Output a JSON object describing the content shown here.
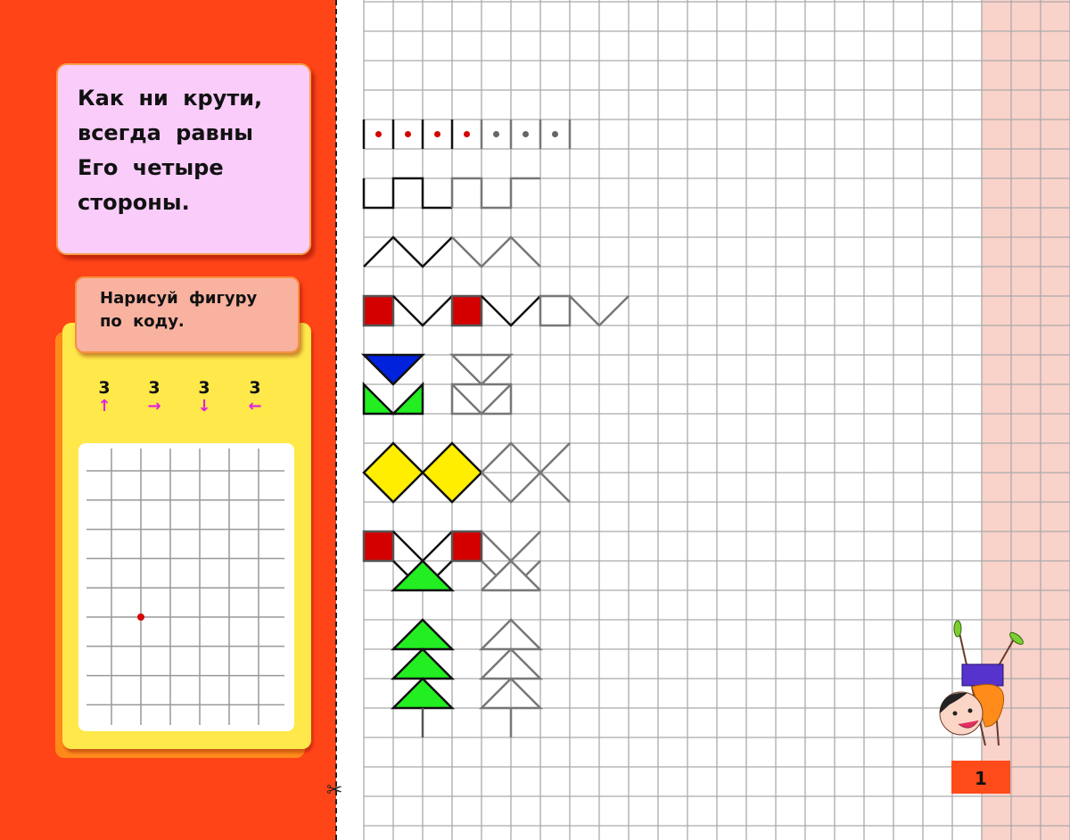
{
  "rhyme": {
    "lines": [
      "Как ни крути,",
      "всегда равны",
      "Его четыре",
      "стороны."
    ]
  },
  "task": {
    "lines": [
      "Нарисуй фигуру",
      "по коду."
    ]
  },
  "code": [
    {
      "count": "3",
      "direction": "up",
      "arrow": "↑"
    },
    {
      "count": "3",
      "direction": "right",
      "arrow": "→"
    },
    {
      "count": "3",
      "direction": "down",
      "arrow": "↓"
    },
    {
      "count": "3",
      "direction": "left",
      "arrow": "←"
    }
  ],
  "page_number": "1",
  "icons": {
    "cut_line": "scissors-icon",
    "mascot": "handstand-boy-illustration"
  },
  "colors": {
    "left_panel": "#ff4418",
    "margin": "#f9d2ca",
    "red": "#d40000",
    "green": "#22ee22",
    "blue": "#0022dd",
    "yellow": "#ffee00",
    "arrow": "#e020e0"
  }
}
